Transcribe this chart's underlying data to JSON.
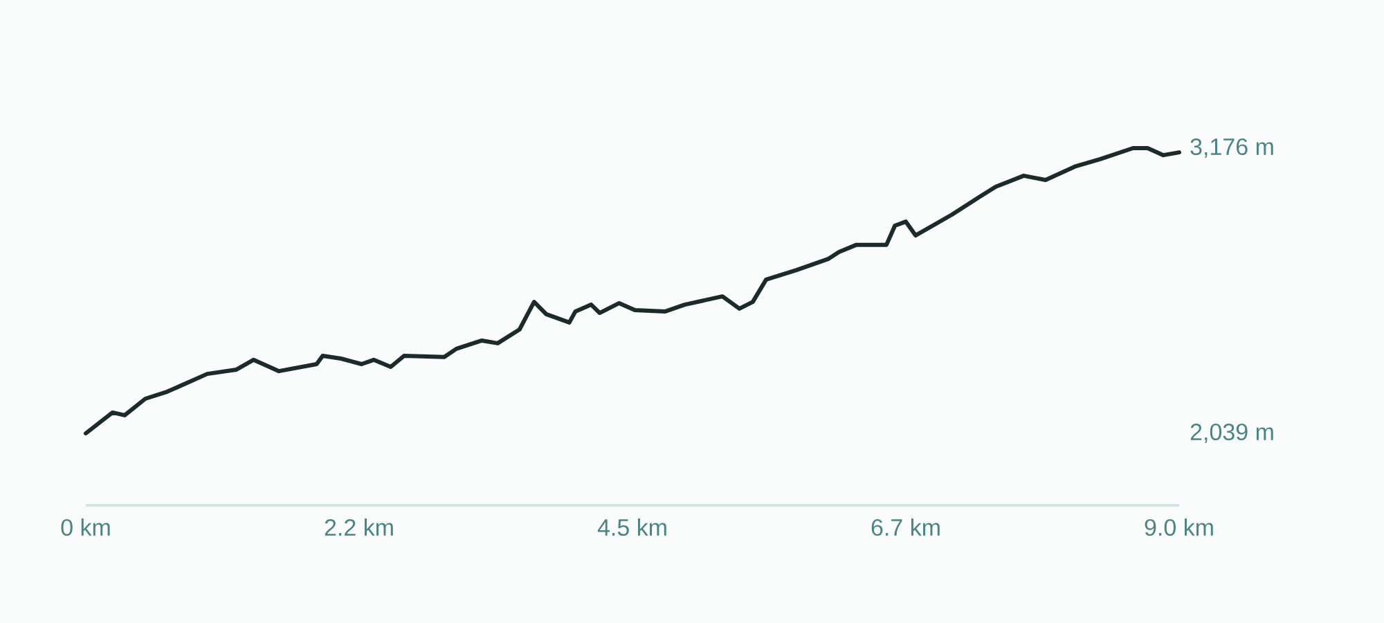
{
  "chart_data": {
    "type": "line",
    "color": "#1b2b2b",
    "x": [
      0.0,
      0.22,
      0.32,
      0.49,
      0.67,
      1.0,
      1.24,
      1.38,
      1.59,
      1.9,
      1.95,
      2.1,
      2.27,
      2.37,
      2.51,
      2.62,
      2.95,
      3.05,
      3.26,
      3.39,
      3.57,
      3.69,
      3.79,
      3.98,
      4.03,
      4.16,
      4.23,
      4.39,
      4.52,
      4.77,
      4.93,
      5.24,
      5.38,
      5.49,
      5.6,
      5.85,
      6.11,
      6.2,
      6.34,
      6.59,
      6.66,
      6.75,
      6.83,
      7.13,
      7.36,
      7.49,
      7.72,
      7.9,
      8.15,
      8.35,
      8.62,
      8.74,
      8.87,
      9.0
    ],
    "values": [
      2039,
      2122,
      2111,
      2177,
      2205,
      2276,
      2293,
      2332,
      2287,
      2315,
      2348,
      2337,
      2315,
      2332,
      2304,
      2348,
      2343,
      2376,
      2409,
      2398,
      2453,
      2563,
      2514,
      2481,
      2525,
      2552,
      2519,
      2558,
      2530,
      2525,
      2552,
      2585,
      2536,
      2563,
      2652,
      2690,
      2734,
      2762,
      2790,
      2790,
      2867,
      2883,
      2828,
      2911,
      2983,
      3022,
      3066,
      3049,
      3104,
      3132,
      3176,
      3176,
      3148,
      3159
    ],
    "xlim": [
      0,
      9
    ],
    "xticks": [
      {
        "value": 0,
        "label": "0 km"
      },
      {
        "value": 2.25,
        "label": "2.2 km"
      },
      {
        "value": 4.5,
        "label": "4.5 km"
      },
      {
        "value": 6.75,
        "label": "6.7 km"
      },
      {
        "value": 9,
        "label": "9.0 km"
      }
    ],
    "ylim": [
      2039,
      3176
    ],
    "yticks": [
      {
        "value": 2039,
        "label": "2,039 m"
      },
      {
        "value": 3176,
        "label": "3,176 m"
      }
    ]
  }
}
